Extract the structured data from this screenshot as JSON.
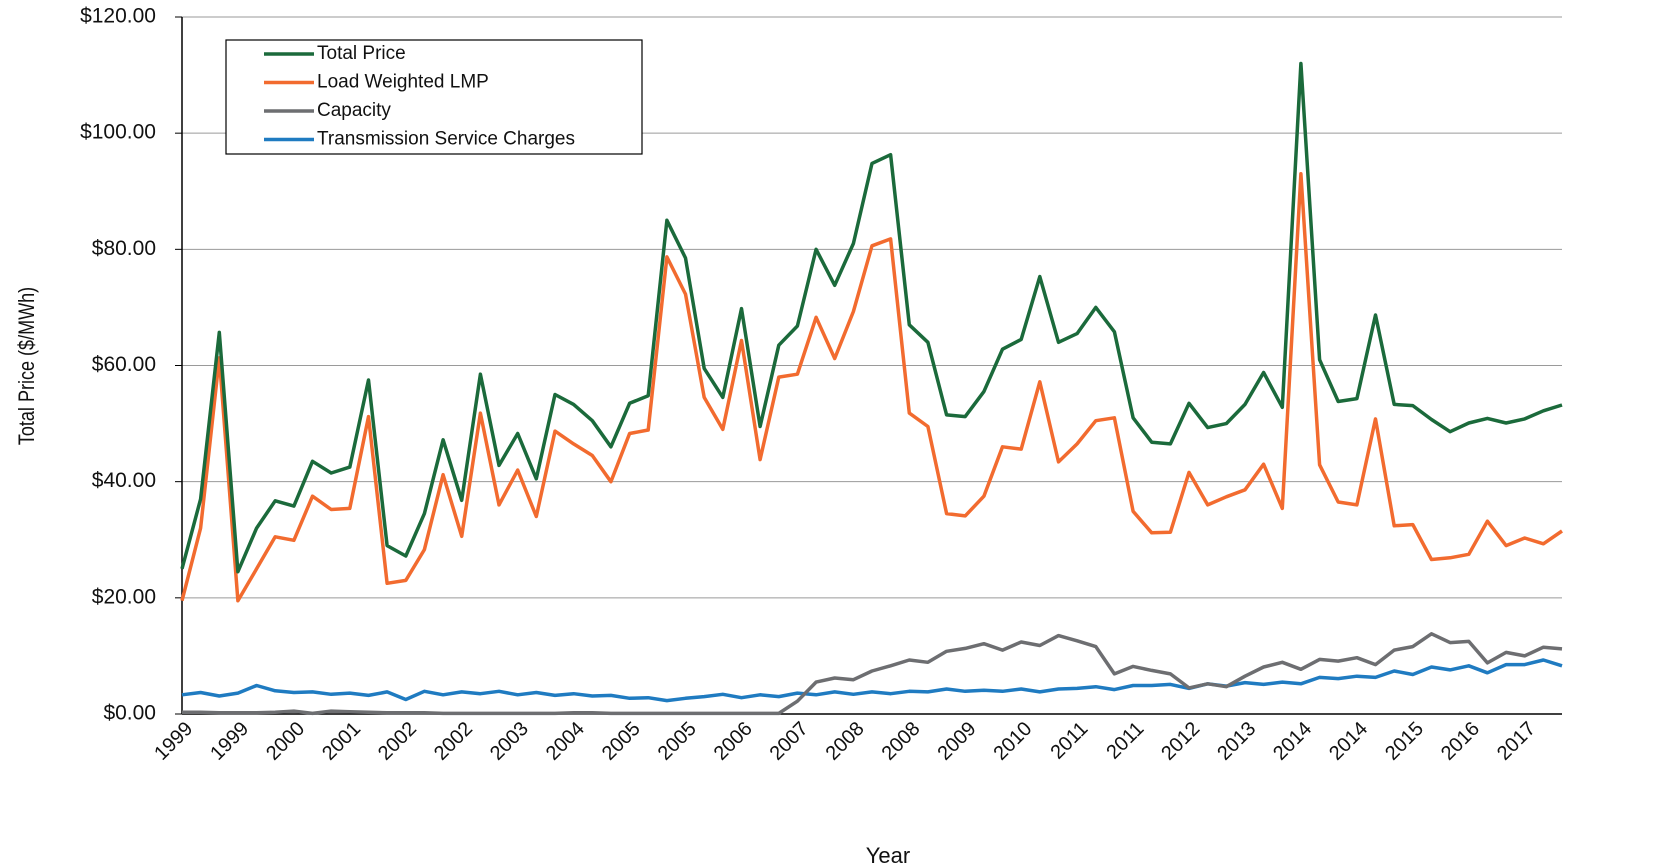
{
  "chart_data": {
    "type": "line",
    "x_label": "Year",
    "y_label": "Total Price ($/MWh)",
    "categories": [
      "1999",
      null,
      null,
      "1999",
      null,
      null,
      "2000",
      null,
      null,
      "2001",
      null,
      null,
      "2002",
      null,
      null,
      "2002",
      null,
      null,
      "2003",
      null,
      null,
      "2004",
      null,
      null,
      "2005",
      null,
      null,
      "2005",
      null,
      null,
      "2006",
      null,
      null,
      "2007",
      null,
      null,
      "2008",
      null,
      null,
      "2008",
      null,
      null,
      "2009",
      null,
      null,
      "2010",
      null,
      null,
      "2011",
      null,
      null,
      "2011",
      null,
      null,
      "2012",
      null,
      null,
      "2013",
      null,
      null,
      "2014",
      null,
      null,
      "2014",
      null,
      null,
      "2015",
      null,
      null,
      "2016",
      null,
      null,
      "2017",
      null,
      null
    ],
    "series": [
      {
        "name": "Total Price",
        "color": "#1b6a3b",
        "values": [
          25,
          37,
          65.7,
          24.5,
          32,
          36.7,
          35.8,
          43.5,
          41.5,
          42.5,
          57.5,
          29,
          27.2,
          34.5,
          47.2,
          36.8,
          58.5,
          42.8,
          48.3,
          40.5,
          55,
          53.3,
          50.5,
          46,
          53.5,
          54.8,
          85,
          78.5,
          59.5,
          54.5,
          69.8,
          49.5,
          63.5,
          66.8,
          80,
          73.8,
          81,
          94.8,
          96.3,
          67,
          64,
          51.5,
          51.2,
          55.5,
          62.8,
          64.5,
          75.3,
          64,
          65.5,
          70,
          65.8,
          51,
          46.8,
          46.5,
          53.5,
          49.3,
          50,
          53.3,
          58.8,
          52.8,
          112,
          61,
          53.8,
          54.3,
          68.7,
          53.3,
          53.1,
          50.7,
          48.6,
          50.1,
          50.9,
          50.1,
          50.8,
          52.2,
          53.2
        ]
      },
      {
        "name": "Load Weighted LMP",
        "color": "#f26b2f",
        "values": [
          19.5,
          32,
          61.3,
          19.5,
          25,
          30.5,
          29.9,
          37.5,
          35.2,
          35.4,
          51.2,
          22.5,
          23,
          28.3,
          41.2,
          30.6,
          51.8,
          36,
          42,
          34,
          48.7,
          46.5,
          44.5,
          40,
          48.3,
          48.9,
          78.7,
          72.3,
          54.5,
          49,
          64.3,
          43.8,
          58,
          58.5,
          68.3,
          61.2,
          69.3,
          80.6,
          81.8,
          51.8,
          49.5,
          34.5,
          34.1,
          37.5,
          46,
          45.6,
          57.2,
          43.4,
          46.5,
          50.5,
          51,
          34.9,
          31.2,
          31.3,
          41.6,
          36,
          37.4,
          38.6,
          43,
          35.4,
          93,
          42.9,
          36.5,
          36,
          50.8,
          32.4,
          32.6,
          26.6,
          26.9,
          27.5,
          33.2,
          29,
          30.3,
          29.3,
          31.5
        ]
      },
      {
        "name": "Capacity",
        "color": "#6d6e71",
        "values": [
          0.3,
          0.3,
          0.2,
          0.2,
          0.2,
          0.3,
          0.5,
          0.1,
          0.5,
          0.4,
          0.3,
          0.2,
          0.2,
          0.2,
          0.1,
          0.1,
          0.1,
          0.1,
          0.1,
          0.1,
          0.1,
          0.2,
          0.2,
          0.1,
          0.1,
          0.1,
          0.1,
          0.1,
          0.1,
          0.1,
          0.1,
          0.1,
          0.1,
          2.2,
          5.5,
          6.2,
          5.9,
          7.4,
          8.3,
          9.3,
          8.9,
          10.8,
          11.3,
          12.1,
          11,
          12.4,
          11.8,
          13.5,
          12.6,
          11.6,
          6.9,
          8.2,
          7.5,
          6.9,
          4.5,
          5.2,
          4.7,
          6.5,
          8.1,
          8.9,
          7.7,
          9.4,
          9.1,
          9.7,
          8.5,
          11,
          11.6,
          13.8,
          12.3,
          12.5,
          8.8,
          10.6,
          10,
          11.5,
          11.2
        ]
      },
      {
        "name": "Transmission Service Charges",
        "color": "#1f7bc1",
        "values": [
          3.3,
          3.7,
          3.1,
          3.6,
          4.9,
          4,
          3.7,
          3.8,
          3.4,
          3.6,
          3.2,
          3.8,
          2.5,
          3.9,
          3.3,
          3.8,
          3.5,
          3.9,
          3.3,
          3.7,
          3.2,
          3.5,
          3.1,
          3.2,
          2.7,
          2.8,
          2.3,
          2.7,
          3,
          3.4,
          2.8,
          3.3,
          3,
          3.6,
          3.3,
          3.8,
          3.4,
          3.8,
          3.5,
          3.9,
          3.8,
          4.3,
          3.9,
          4.1,
          3.9,
          4.3,
          3.8,
          4.3,
          4.4,
          4.7,
          4.2,
          4.9,
          4.9,
          5.1,
          4.4,
          5.2,
          4.8,
          5.4,
          5.1,
          5.5,
          5.2,
          6.3,
          6.1,
          6.5,
          6.3,
          7.4,
          6.8,
          8.1,
          7.6,
          8.3,
          7.1,
          8.5,
          8.5,
          9.3,
          8.3
        ]
      }
    ],
    "ylim": [
      0,
      120
    ],
    "yticks": [
      {
        "value": 0,
        "label": "$0.00"
      },
      {
        "value": 20,
        "label": "$20.00"
      },
      {
        "value": 40,
        "label": "$40.00"
      },
      {
        "value": 60,
        "label": "$60.00"
      },
      {
        "value": 80,
        "label": "$80.00"
      },
      {
        "value": 100,
        "label": "$100.00"
      },
      {
        "value": 120,
        "label": "$120.00"
      }
    ],
    "grid": true,
    "legend": "upper-left"
  }
}
